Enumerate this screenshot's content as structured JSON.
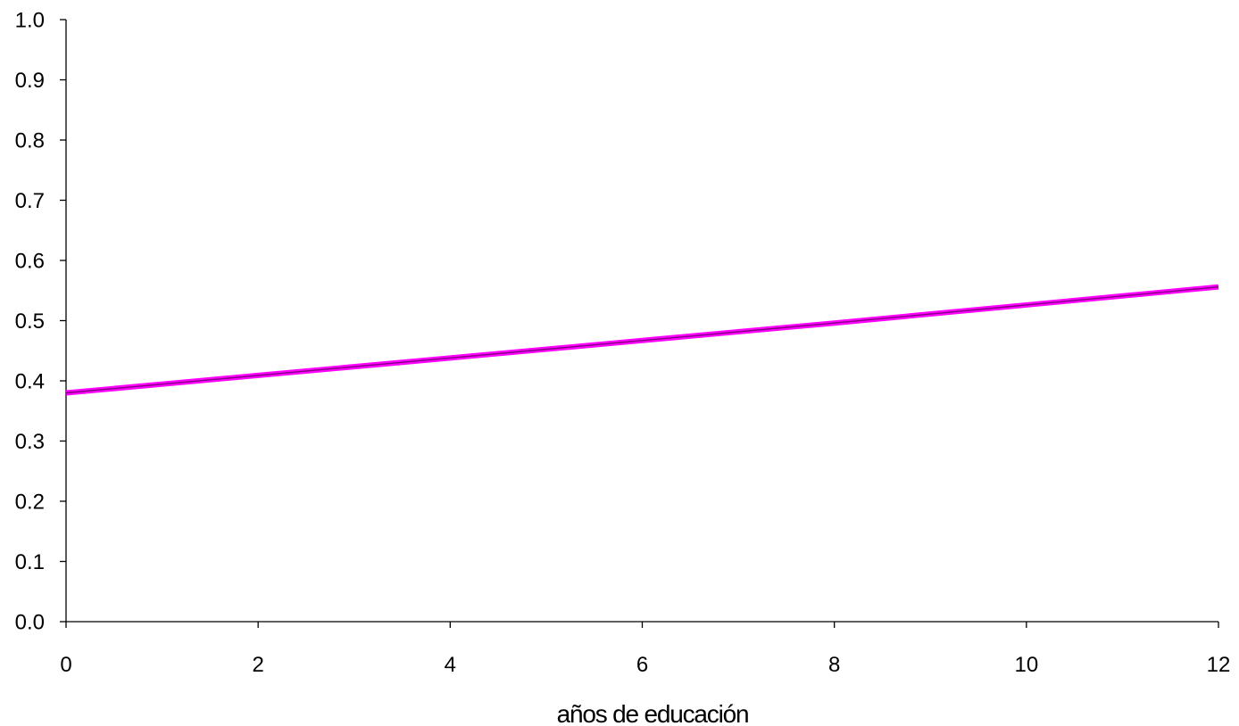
{
  "chart_data": {
    "type": "line",
    "title": "",
    "xlabel": "años de educación",
    "ylabel": "",
    "xlim": [
      0,
      12
    ],
    "ylim": [
      0.0,
      1.0
    ],
    "x_ticks": [
      0,
      2,
      4,
      6,
      8,
      10,
      12
    ],
    "x_tick_labels": [
      "0",
      "2",
      "4",
      "6",
      "8",
      "10",
      "12"
    ],
    "y_ticks": [
      0.0,
      0.1,
      0.2,
      0.3,
      0.4,
      0.5,
      0.6,
      0.7,
      0.8,
      0.9,
      1.0
    ],
    "y_tick_labels": [
      "0.0",
      "0.1",
      "0.2",
      "0.3",
      "0.4",
      "0.5",
      "0.6",
      "0.7",
      "0.8",
      "0.9",
      "1.0"
    ],
    "grid": false,
    "legend": "none",
    "series": [
      {
        "x": [
          0,
          2,
          4,
          6,
          8,
          10,
          12
        ],
        "y": [
          0.38,
          0.409,
          0.438,
          0.467,
          0.496,
          0.526,
          0.556
        ],
        "color": "#ff00ff",
        "core_color": "#800080"
      }
    ]
  }
}
